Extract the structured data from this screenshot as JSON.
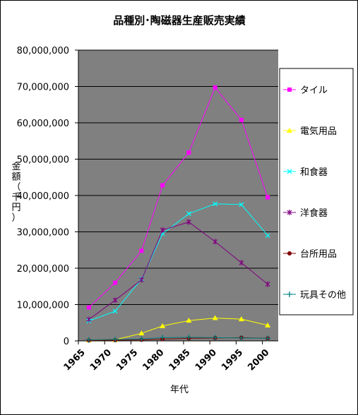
{
  "chart_data": {
    "type": "line",
    "title": "品種別･陶磁器生産販売実績",
    "xlabel": "年代",
    "ylabel": "金額（千円）",
    "x": [
      1967,
      1972,
      1977,
      1981,
      1986,
      1991,
      1996,
      2001
    ],
    "xticks": [
      "1965",
      "1970",
      "1975",
      "1980",
      "1985",
      "1990",
      "1995",
      "2000"
    ],
    "xlim": [
      1965,
      2003
    ],
    "ylim": [
      0,
      80000000
    ],
    "yticks": [
      "0",
      "10,000,000",
      "20,000,000",
      "30,000,000",
      "40,000,000",
      "50,000,000",
      "60,000,000",
      "70,000,000",
      "80,000,000"
    ],
    "grid": true,
    "legend": "right",
    "plot_background": "#808080",
    "series": [
      {
        "name": "タイル",
        "color": "#ff00ff",
        "marker": "square",
        "values": [
          9200000,
          16000000,
          24800000,
          42800000,
          51800000,
          69700000,
          60800000,
          39500000
        ]
      },
      {
        "name": "電気用品",
        "color": "#ffff00",
        "marker": "triangle",
        "values": [
          200000,
          300000,
          2100000,
          4100000,
          5600000,
          6300000,
          6000000,
          4300000
        ]
      },
      {
        "name": "和食器",
        "color": "#00ffff",
        "marker": "x",
        "values": [
          5500000,
          8200000,
          17000000,
          29500000,
          35000000,
          37700000,
          37500000,
          29000000
        ]
      },
      {
        "name": "洋食器",
        "color": "#800080",
        "marker": "star",
        "values": [
          5900000,
          11200000,
          16800000,
          30500000,
          32700000,
          27300000,
          21500000,
          15600000
        ]
      },
      {
        "name": "台所用品",
        "color": "#800000",
        "marker": "circle",
        "values": [
          150000,
          200000,
          300000,
          500000,
          700000,
          800000,
          900000,
          700000
        ]
      },
      {
        "name": "玩具その他",
        "color": "#008080",
        "marker": "plus",
        "values": [
          300000,
          400000,
          500000,
          900000,
          1000000,
          900000,
          800000,
          700000
        ]
      }
    ]
  }
}
